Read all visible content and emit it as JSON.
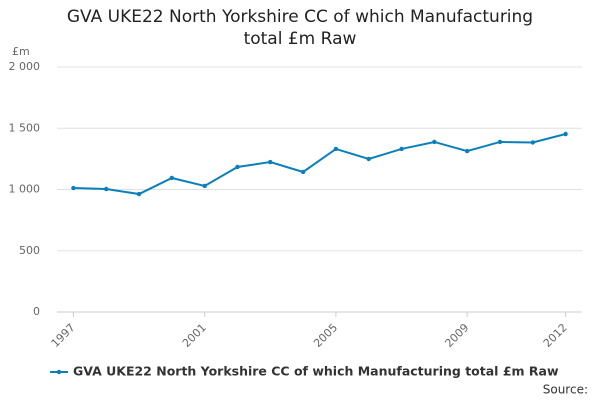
{
  "chart_data": {
    "type": "line",
    "title": "GVA UKE22 North Yorkshire CC of which Manufacturing total £m Raw",
    "y_label": "£m",
    "source": "Source:",
    "x": [
      1997,
      1998,
      1999,
      2000,
      2001,
      2002,
      2003,
      2004,
      2005,
      2006,
      2007,
      2008,
      2009,
      2010,
      2011,
      2012
    ],
    "series": [
      {
        "name": "GVA UKE22 North Yorkshire CC of which Manufacturing total £m Raw",
        "color": "#0b7fbb",
        "values": [
          1012,
          1004,
          963,
          1094,
          1029,
          1184,
          1224,
          1143,
          1331,
          1249,
          1331,
          1388,
          1314,
          1388,
          1384,
          1453
        ]
      }
    ],
    "xlim": [
      1996.5,
      2012.5
    ],
    "xticks": [
      1997,
      2001,
      2005,
      2009,
      2012
    ],
    "ylim": [
      0,
      2000
    ],
    "yticks": [
      0,
      500,
      {
        "value": 1000,
        "label": "1 000"
      },
      {
        "value": 1500,
        "label": "1 500"
      },
      {
        "value": 2000,
        "label": "2 000"
      }
    ],
    "grid": true,
    "legend": "bottom"
  }
}
